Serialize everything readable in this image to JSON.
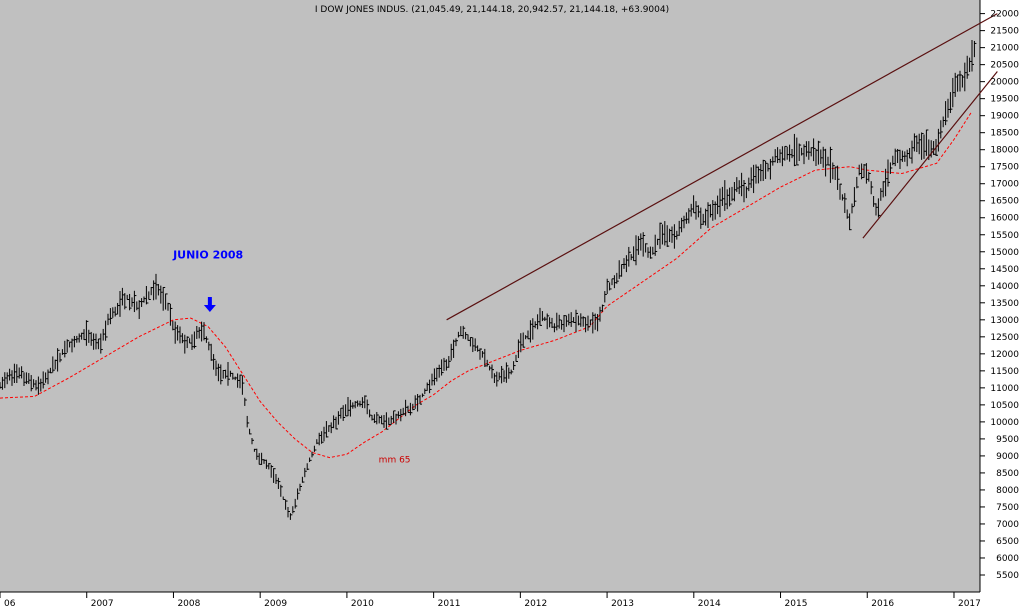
{
  "chart_data": {
    "type": "line",
    "title": "I DOW JONES INDUS. (21,045.49, 21,144.18, 20,942.57, 21,144.18, +63.9004)",
    "x_axis": {
      "range": [
        2006.0,
        2017.3
      ],
      "tick_labels": [
        "06",
        "2007",
        "2008",
        "2009",
        "2010",
        "2011",
        "2012",
        "2013",
        "2014",
        "2015",
        "2016",
        "2017"
      ],
      "tick_years": [
        2006,
        2007,
        2008,
        2009,
        2010,
        2011,
        2012,
        2013,
        2014,
        2015,
        2016,
        2017
      ]
    },
    "y_axis": {
      "range": [
        5000,
        22400
      ],
      "tick_values": [
        5500,
        6000,
        6500,
        7000,
        7500,
        8000,
        8500,
        9000,
        9500,
        10000,
        10500,
        11000,
        11500,
        12000,
        12500,
        13000,
        13500,
        14000,
        14500,
        15000,
        15500,
        16000,
        16500,
        17000,
        17500,
        18000,
        18500,
        19000,
        19500,
        20000,
        20500,
        21000,
        21500,
        22000
      ],
      "position": "right"
    },
    "grid": false,
    "series": [
      {
        "kind": "price-bars",
        "color": "#000000",
        "x": [
          2006.0,
          2006.2,
          2006.45,
          2006.6,
          2006.8,
          2007.0,
          2007.15,
          2007.25,
          2007.45,
          2007.6,
          2007.8,
          2007.95,
          2008.0,
          2008.15,
          2008.35,
          2008.5,
          2008.65,
          2008.8,
          2008.85,
          2008.95,
          2009.1,
          2009.2,
          2009.35,
          2009.5,
          2009.65,
          2009.8,
          2010.0,
          2010.2,
          2010.3,
          2010.5,
          2010.65,
          2010.8,
          2011.0,
          2011.2,
          2011.3,
          2011.5,
          2011.6,
          2011.7,
          2011.9,
          2012.0,
          2012.25,
          2012.4,
          2012.6,
          2012.8,
          2012.9,
          2013.0,
          2013.2,
          2013.4,
          2013.5,
          2013.6,
          2013.8,
          2014.0,
          2014.1,
          2014.3,
          2014.5,
          2014.6,
          2014.7,
          2014.8,
          2014.95,
          2015.1,
          2015.3,
          2015.45,
          2015.55,
          2015.65,
          2015.8,
          2015.9,
          2016.0,
          2016.1,
          2016.3,
          2016.45,
          2016.6,
          2016.7,
          2016.8,
          2016.9,
          2017.0,
          2017.1,
          2017.2,
          2017.25
        ],
        "y": [
          11100,
          11500,
          11000,
          11600,
          12300,
          12600,
          12200,
          13000,
          13700,
          13400,
          14000,
          13300,
          12700,
          12300,
          12700,
          11400,
          11400,
          11100,
          10000,
          9000,
          8700,
          8200,
          7200,
          8400,
          9400,
          9800,
          10400,
          10600,
          10100,
          10000,
          10300,
          10500,
          11300,
          11900,
          12700,
          12200,
          11800,
          11300,
          11500,
          12300,
          13100,
          12800,
          13000,
          12900,
          12900,
          13900,
          14600,
          15300,
          14900,
          15400,
          15500,
          16400,
          15900,
          16500,
          16900,
          16800,
          17200,
          17300,
          17800,
          17900,
          18000,
          17800,
          17700,
          17100,
          15900,
          17400,
          17400,
          16200,
          17700,
          17800,
          18300,
          18100,
          18100,
          19000,
          19800,
          20000,
          20700,
          21100
        ]
      },
      {
        "name": "mm 65",
        "kind": "moving-average",
        "style": "dashed",
        "color": "#ff0000",
        "x": [
          2006.0,
          2006.4,
          2006.8,
          2007.2,
          2007.6,
          2008.0,
          2008.2,
          2008.4,
          2008.6,
          2008.8,
          2009.0,
          2009.2,
          2009.4,
          2009.6,
          2009.8,
          2010.0,
          2010.2,
          2010.4,
          2010.6,
          2010.8,
          2011.0,
          2011.2,
          2011.4,
          2011.6,
          2011.8,
          2012.0,
          2012.4,
          2012.8,
          2013.0,
          2013.4,
          2013.8,
          2014.2,
          2014.6,
          2015.0,
          2015.4,
          2015.8,
          2016.0,
          2016.4,
          2016.8,
          2017.0,
          2017.2
        ],
        "y": [
          10700,
          10750,
          11300,
          11900,
          12500,
          13000,
          13050,
          12800,
          12200,
          11400,
          10600,
          10000,
          9500,
          9100,
          8950,
          9050,
          9400,
          9700,
          10100,
          10500,
          10800,
          11200,
          11500,
          11700,
          11900,
          12100,
          12400,
          12800,
          13400,
          14100,
          14800,
          15700,
          16300,
          16900,
          17400,
          17500,
          17400,
          17300,
          17600,
          18300,
          19100
        ]
      }
    ],
    "trendlines": [
      {
        "x": [
          2011.15,
          2017.5
        ],
        "y": [
          13000,
          22000
        ],
        "color": "#5a1010"
      },
      {
        "x": [
          2015.95,
          2017.5
        ],
        "y": [
          15400,
          20300
        ],
        "color": "#5a1010"
      }
    ],
    "annotations": [
      {
        "text": "JUNIO 2008",
        "x": 2008.4,
        "y": 14800,
        "color": "#0000ff"
      },
      {
        "text": "mm 65",
        "x": 2010.55,
        "y": 8800,
        "color": "#cc0000"
      }
    ],
    "arrow": {
      "x": 2008.42,
      "y": 13200,
      "color": "#0000ff",
      "direction": "down"
    }
  }
}
